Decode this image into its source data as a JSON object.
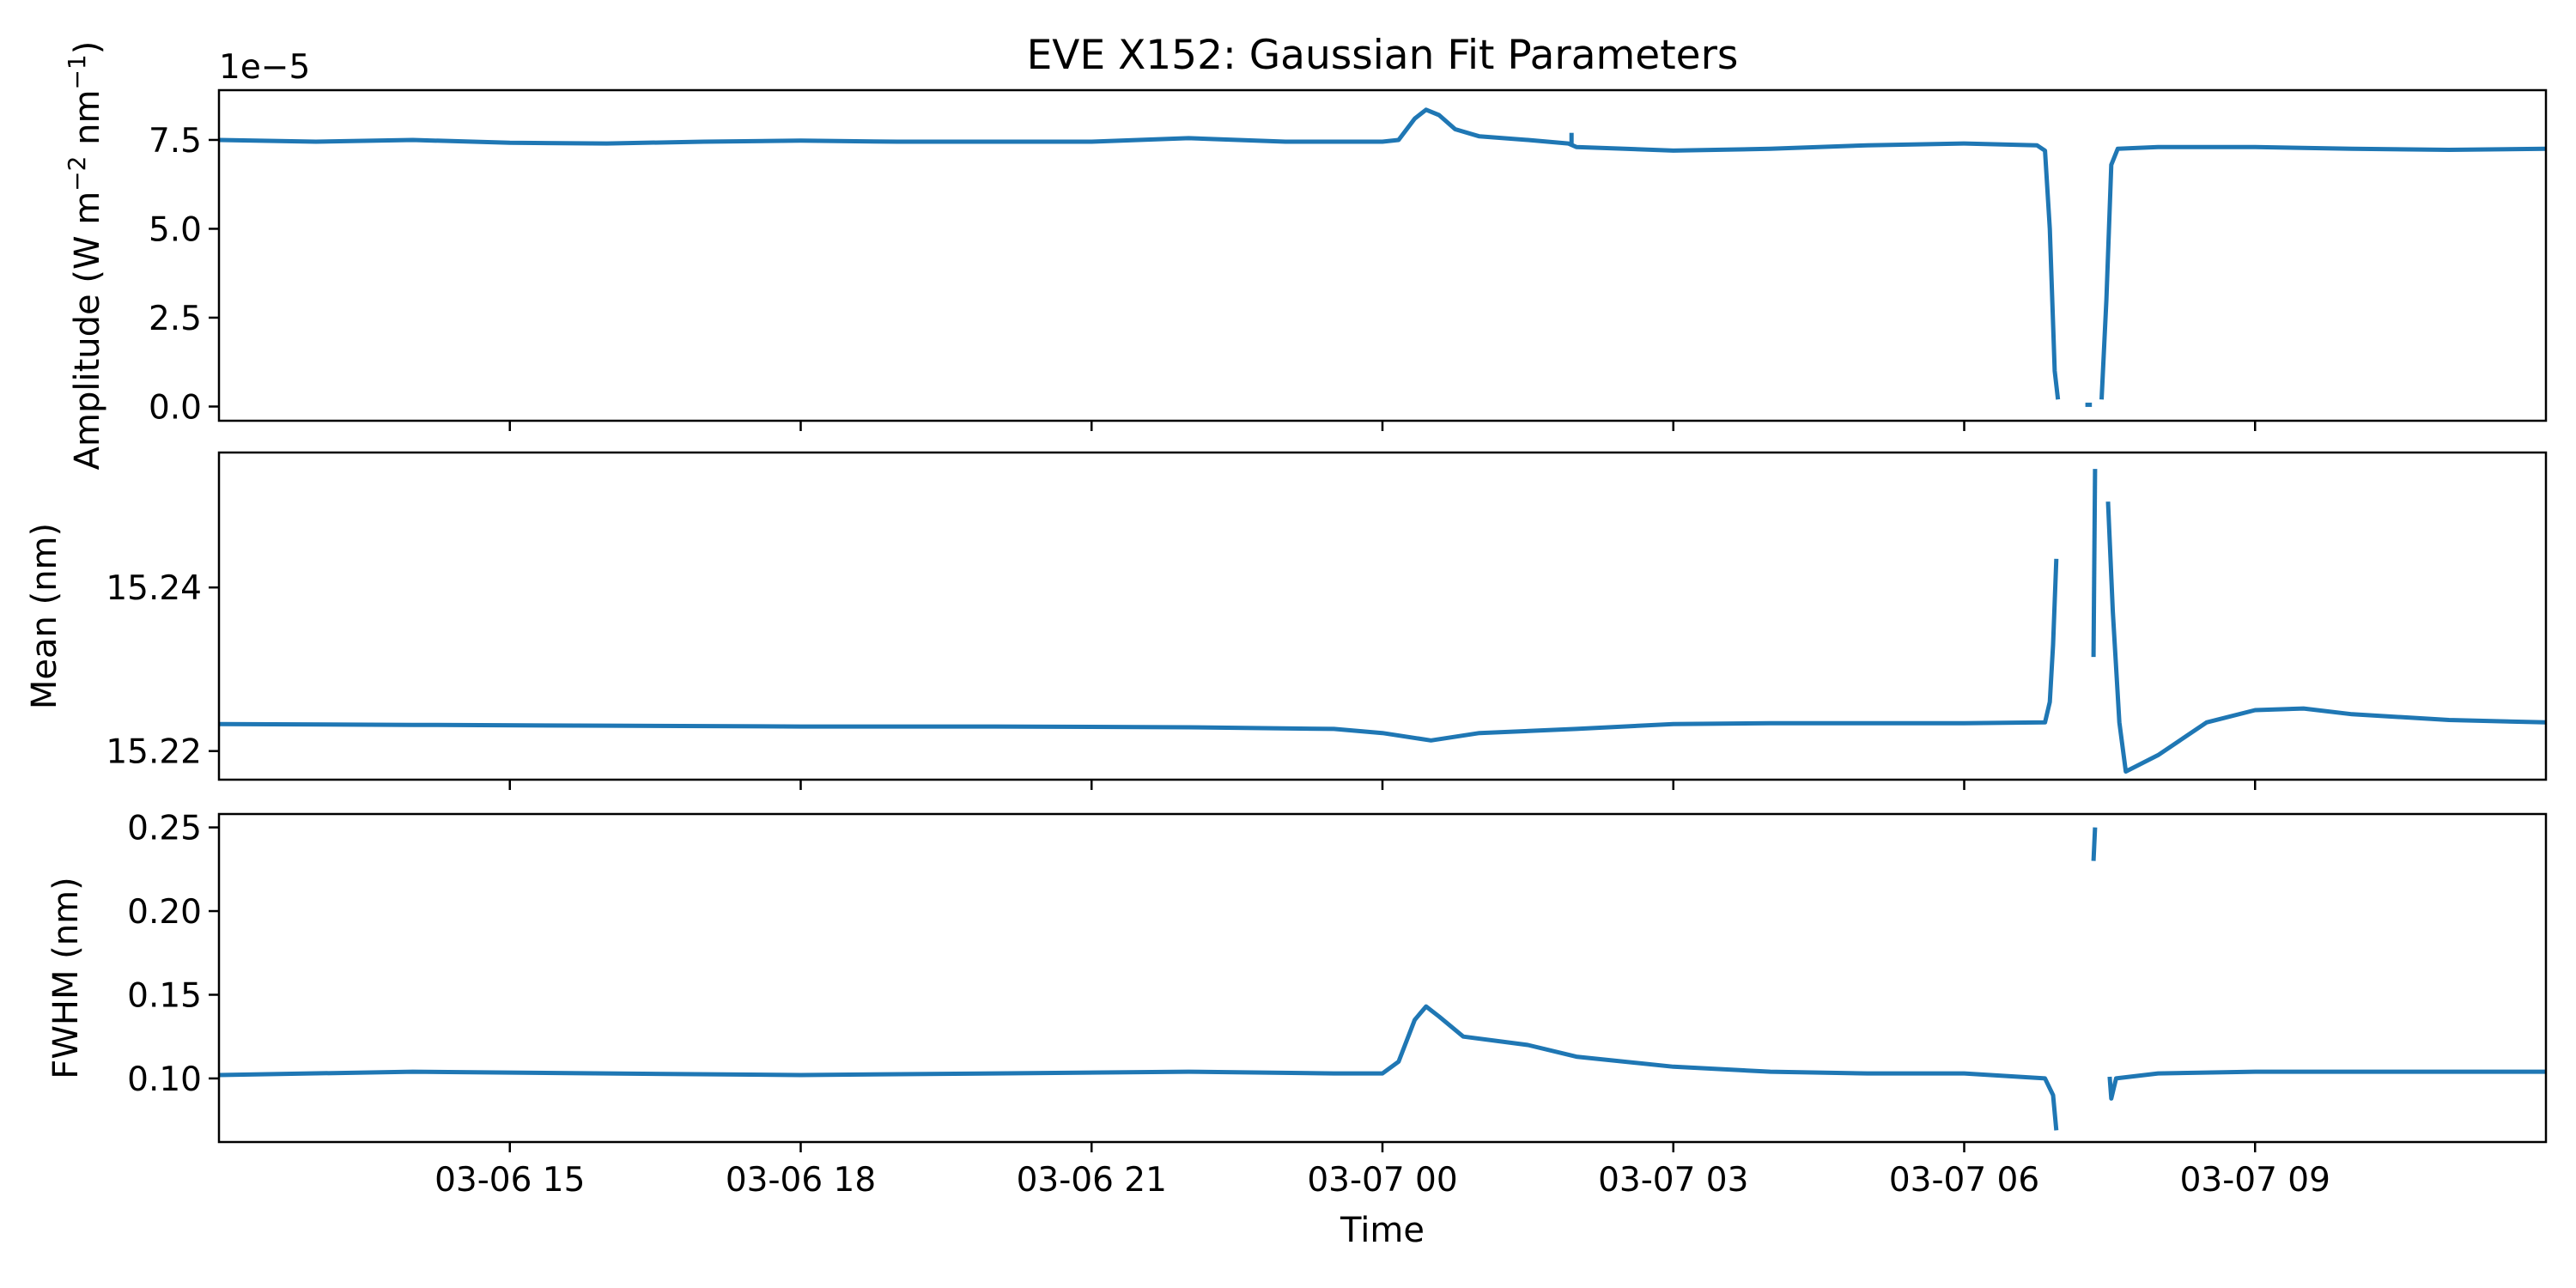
{
  "chart_data": {
    "type": "line",
    "title": "EVE X152: Gaussian Fit Parameters",
    "xlabel": "Time",
    "x_domain": [
      "2023-03-06T12:00",
      "2023-03-07T12:00"
    ],
    "x_ticks": [
      {
        "x": "2023-03-06T15:00",
        "label": "03-06 15"
      },
      {
        "x": "2023-03-06T18:00",
        "label": "03-06 18"
      },
      {
        "x": "2023-03-06T21:00",
        "label": "03-06 21"
      },
      {
        "x": "2023-03-07T00:00",
        "label": "03-07 00"
      },
      {
        "x": "2023-03-07T03:00",
        "label": "03-07 03"
      },
      {
        "x": "2023-03-07T06:00",
        "label": "03-07 06"
      },
      {
        "x": "2023-03-07T09:00",
        "label": "03-07 09"
      }
    ],
    "line_color": "#1f77b4",
    "panels": [
      {
        "id": "amplitude",
        "ylabel_parts": [
          "Amplitude (W m",
          "−2",
          " nm",
          "−1",
          ")"
        ],
        "offset_text": "1e−5",
        "scale_note": "values are in units of 1e-5",
        "ylim": [
          -0.4,
          8.9
        ],
        "yticks": [
          0,
          2.5,
          5.0,
          7.5
        ],
        "ytick_labels": [
          "0.0",
          "2.5",
          "5.0",
          "7.5"
        ],
        "segments": [
          [
            [
              "2023-03-06T12:00",
              7.5
            ],
            [
              "2023-03-06T13:00",
              7.45
            ],
            [
              "2023-03-06T14:00",
              7.5
            ],
            [
              "2023-03-06T15:00",
              7.42
            ],
            [
              "2023-03-06T16:00",
              7.4
            ],
            [
              "2023-03-06T17:00",
              7.45
            ],
            [
              "2023-03-06T18:00",
              7.48
            ],
            [
              "2023-03-06T19:00",
              7.45
            ],
            [
              "2023-03-06T20:00",
              7.45
            ],
            [
              "2023-03-06T21:00",
              7.45
            ],
            [
              "2023-03-06T22:00",
              7.55
            ],
            [
              "2023-03-06T23:00",
              7.45
            ],
            [
              "2023-03-07T00:00",
              7.45
            ],
            [
              "2023-03-07T00:10",
              7.5
            ],
            [
              "2023-03-07T00:20",
              8.1
            ],
            [
              "2023-03-07T00:27",
              8.35
            ],
            [
              "2023-03-07T00:35",
              8.2
            ],
            [
              "2023-03-07T00:45",
              7.8
            ],
            [
              "2023-03-07T01:00",
              7.6
            ],
            [
              "2023-03-07T01:30",
              7.5
            ],
            [
              "2023-03-07T01:55",
              7.4
            ],
            [
              "2023-03-07T02:00",
              7.3
            ],
            [
              "2023-03-07T02:30",
              7.25
            ],
            [
              "2023-03-07T03:00",
              7.2
            ],
            [
              "2023-03-07T04:00",
              7.25
            ],
            [
              "2023-03-07T05:00",
              7.35
            ],
            [
              "2023-03-07T06:00",
              7.4
            ],
            [
              "2023-03-07T06:45",
              7.35
            ],
            [
              "2023-03-07T06:50",
              7.2
            ],
            [
              "2023-03-07T06:53",
              5.0
            ],
            [
              "2023-03-07T06:56",
              1.0
            ],
            [
              "2023-03-07T06:58",
              0.2
            ]
          ],
          [
            [
              "2023-03-07T07:15",
              0.05
            ],
            [
              "2023-03-07T07:19",
              0.05
            ]
          ],
          [
            [
              "2023-03-07T07:25",
              0.2
            ],
            [
              "2023-03-07T07:28",
              3.0
            ],
            [
              "2023-03-07T07:31",
              6.8
            ],
            [
              "2023-03-07T07:35",
              7.25
            ],
            [
              "2023-03-07T08:00",
              7.3
            ],
            [
              "2023-03-07T09:00",
              7.3
            ],
            [
              "2023-03-07T10:00",
              7.25
            ],
            [
              "2023-03-07T11:00",
              7.22
            ],
            [
              "2023-03-07T12:00",
              7.25
            ]
          ],
          [
            [
              "2023-03-07T01:57",
              7.7
            ],
            [
              "2023-03-07T01:57",
              7.35
            ]
          ]
        ]
      },
      {
        "id": "mean",
        "ylabel_parts": [
          "Mean (nm)"
        ],
        "ylim": [
          15.2165,
          15.2565
        ],
        "yticks": [
          15.22,
          15.24
        ],
        "ytick_labels": [
          "15.22",
          "15.24"
        ],
        "segments": [
          [
            [
              "2023-03-06T12:00",
              15.2233
            ],
            [
              "2023-03-06T14:00",
              15.2232
            ],
            [
              "2023-03-06T16:00",
              15.2231
            ],
            [
              "2023-03-06T18:00",
              15.223
            ],
            [
              "2023-03-06T20:00",
              15.223
            ],
            [
              "2023-03-06T22:00",
              15.2229
            ],
            [
              "2023-03-06T23:30",
              15.2227
            ],
            [
              "2023-03-07T00:00",
              15.2222
            ],
            [
              "2023-03-07T00:30",
              15.2213
            ],
            [
              "2023-03-07T01:00",
              15.2222
            ],
            [
              "2023-03-07T02:00",
              15.2227
            ],
            [
              "2023-03-07T03:00",
              15.2233
            ],
            [
              "2023-03-07T04:00",
              15.2234
            ],
            [
              "2023-03-07T05:00",
              15.2234
            ],
            [
              "2023-03-07T06:00",
              15.2234
            ],
            [
              "2023-03-07T06:50",
              15.2235
            ],
            [
              "2023-03-07T06:53",
              15.226
            ],
            [
              "2023-03-07T06:55",
              15.233
            ],
            [
              "2023-03-07T06:57",
              15.2435
            ]
          ],
          [
            [
              "2023-03-07T07:20",
              15.2315
            ],
            [
              "2023-03-07T07:21",
              15.2545
            ]
          ],
          [
            [
              "2023-03-07T07:29",
              15.2505
            ],
            [
              "2023-03-07T07:32",
              15.237
            ],
            [
              "2023-03-07T07:36",
              15.2235
            ],
            [
              "2023-03-07T07:40",
              15.2175
            ],
            [
              "2023-03-07T08:00",
              15.2195
            ],
            [
              "2023-03-07T08:30",
              15.2235
            ],
            [
              "2023-03-07T09:00",
              15.225
            ],
            [
              "2023-03-07T09:30",
              15.2252
            ],
            [
              "2023-03-07T10:00",
              15.2245
            ],
            [
              "2023-03-07T11:00",
              15.2238
            ],
            [
              "2023-03-07T12:00",
              15.2235
            ]
          ]
        ]
      },
      {
        "id": "fwhm",
        "ylabel_parts": [
          "FWHM (nm)"
        ],
        "ylim": [
          0.062,
          0.258
        ],
        "yticks": [
          0.1,
          0.15,
          0.2,
          0.25
        ],
        "ytick_labels": [
          "0.10",
          "0.15",
          "0.20",
          "0.25"
        ],
        "segments": [
          [
            [
              "2023-03-06T12:00",
              0.102
            ],
            [
              "2023-03-06T14:00",
              0.104
            ],
            [
              "2023-03-06T16:00",
              0.103
            ],
            [
              "2023-03-06T18:00",
              0.102
            ],
            [
              "2023-03-06T20:00",
              0.103
            ],
            [
              "2023-03-06T22:00",
              0.104
            ],
            [
              "2023-03-06T23:30",
              0.103
            ],
            [
              "2023-03-07T00:00",
              0.103
            ],
            [
              "2023-03-07T00:10",
              0.11
            ],
            [
              "2023-03-07T00:20",
              0.135
            ],
            [
              "2023-03-07T00:27",
              0.143
            ],
            [
              "2023-03-07T00:35",
              0.137
            ],
            [
              "2023-03-07T00:50",
              0.125
            ],
            [
              "2023-03-07T01:30",
              0.12
            ],
            [
              "2023-03-07T02:00",
              0.113
            ],
            [
              "2023-03-07T03:00",
              0.107
            ],
            [
              "2023-03-07T04:00",
              0.104
            ],
            [
              "2023-03-07T05:00",
              0.103
            ],
            [
              "2023-03-07T06:00",
              0.103
            ],
            [
              "2023-03-07T06:50",
              0.1
            ],
            [
              "2023-03-07T06:55",
              0.09
            ],
            [
              "2023-03-07T06:57",
              0.069
            ]
          ],
          [
            [
              "2023-03-07T07:20",
              0.23
            ],
            [
              "2023-03-07T07:21",
              0.25
            ]
          ],
          [
            [
              "2023-03-07T07:30",
              0.101
            ],
            [
              "2023-03-07T07:31",
              0.088
            ],
            [
              "2023-03-07T07:34",
              0.1
            ],
            [
              "2023-03-07T08:00",
              0.103
            ],
            [
              "2023-03-07T09:00",
              0.104
            ],
            [
              "2023-03-07T10:00",
              0.104
            ],
            [
              "2023-03-07T11:00",
              0.104
            ],
            [
              "2023-03-07T12:00",
              0.104
            ]
          ]
        ]
      }
    ]
  }
}
